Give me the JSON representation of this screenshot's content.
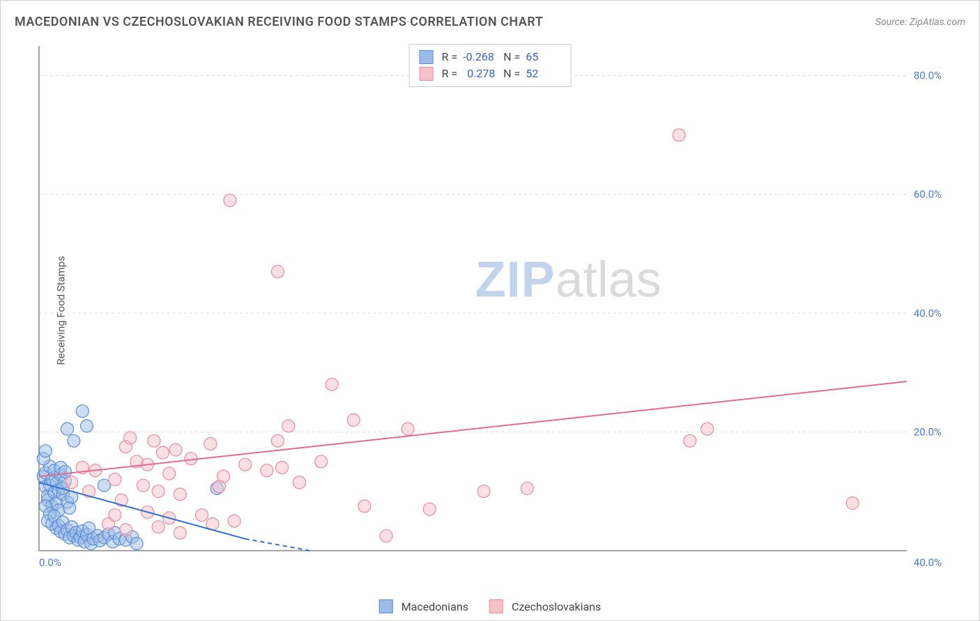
{
  "title": "MACEDONIAN VS CZECHOSLOVAKIAN RECEIVING FOOD STAMPS CORRELATION CHART",
  "source_label": "Source: ",
  "source_value": "ZipAtlas.com",
  "y_axis_label": "Receiving Food Stamps",
  "watermark_zip": "ZIP",
  "watermark_atlas": "atlas",
  "chart": {
    "type": "scatter",
    "xlim": [
      0,
      40
    ],
    "ylim": [
      0,
      85
    ],
    "x_ticks": [
      0,
      40
    ],
    "x_tick_labels": [
      "0.0%",
      "40.0%"
    ],
    "y_ticks": [
      20,
      40,
      60,
      80
    ],
    "y_tick_labels": [
      "20.0%",
      "40.0%",
      "60.0%",
      "80.0%"
    ],
    "background_color": "#ffffff",
    "grid_color": "#dddddd",
    "axis_color": "#888888",
    "tick_label_color": "#4a7bd0",
    "marker_radius": 9,
    "marker_opacity": 0.5,
    "line_width": 2,
    "series": [
      {
        "name": "Macedonians",
        "fill_color": "#9bbce8",
        "stroke_color": "#5a8fd6",
        "line_color": "#2e6fd1",
        "R": "-0.268",
        "N": "65",
        "trend": {
          "x1": 0,
          "y1": 11.5,
          "x2": 9.5,
          "y2": 2.0,
          "dash_x2": 12.5,
          "dash_y2": -1
        },
        "points": [
          [
            0.2,
            12.5
          ],
          [
            0.3,
            10.8
          ],
          [
            0.4,
            9.2
          ],
          [
            0.3,
            13.1
          ],
          [
            0.5,
            11.0
          ],
          [
            0.4,
            8.5
          ],
          [
            0.6,
            12.0
          ],
          [
            0.5,
            14.2
          ],
          [
            0.7,
            9.8
          ],
          [
            0.6,
            7.5
          ],
          [
            0.8,
            11.3
          ],
          [
            0.7,
            13.5
          ],
          [
            0.9,
            10.2
          ],
          [
            0.8,
            8.0
          ],
          [
            1.0,
            12.8
          ],
          [
            1.1,
            9.5
          ],
          [
            0.9,
            6.8
          ],
          [
            1.2,
            11.7
          ],
          [
            1.0,
            14.0
          ],
          [
            1.3,
            8.2
          ],
          [
            1.1,
            10.5
          ],
          [
            1.4,
            7.2
          ],
          [
            1.2,
            13.3
          ],
          [
            1.5,
            9.0
          ],
          [
            0.3,
            7.5
          ],
          [
            0.5,
            6.2
          ],
          [
            0.4,
            5.0
          ],
          [
            0.6,
            4.5
          ],
          [
            0.7,
            5.8
          ],
          [
            0.8,
            3.8
          ],
          [
            0.9,
            4.2
          ],
          [
            1.0,
            3.2
          ],
          [
            1.1,
            4.8
          ],
          [
            1.2,
            2.8
          ],
          [
            1.3,
            3.5
          ],
          [
            1.4,
            2.2
          ],
          [
            1.5,
            4.0
          ],
          [
            1.6,
            2.5
          ],
          [
            1.7,
            3.0
          ],
          [
            1.8,
            1.8
          ],
          [
            1.9,
            2.3
          ],
          [
            2.0,
            3.3
          ],
          [
            2.1,
            1.5
          ],
          [
            2.2,
            2.7
          ],
          [
            2.3,
            3.8
          ],
          [
            2.4,
            1.2
          ],
          [
            2.5,
            2.0
          ],
          [
            2.7,
            2.5
          ],
          [
            2.8,
            1.7
          ],
          [
            3.0,
            2.2
          ],
          [
            3.2,
            2.8
          ],
          [
            3.4,
            1.5
          ],
          [
            3.5,
            3.0
          ],
          [
            3.7,
            2.0
          ],
          [
            4.0,
            1.8
          ],
          [
            4.3,
            2.3
          ],
          [
            4.5,
            1.2
          ],
          [
            0.2,
            15.5
          ],
          [
            0.3,
            16.8
          ],
          [
            2.0,
            23.5
          ],
          [
            2.2,
            21.0
          ],
          [
            1.6,
            18.5
          ],
          [
            1.3,
            20.5
          ],
          [
            3.0,
            11.0
          ],
          [
            8.2,
            10.5
          ]
        ]
      },
      {
        "name": "Czechoslovakians",
        "fill_color": "#f5c2cc",
        "stroke_color": "#e88ba0",
        "line_color": "#e56b8a",
        "R": "0.278",
        "N": "52",
        "trend": {
          "x1": 0,
          "y1": 12.5,
          "x2": 40,
          "y2": 28.5
        },
        "points": [
          [
            1.5,
            11.5
          ],
          [
            2.0,
            14.0
          ],
          [
            2.3,
            10.0
          ],
          [
            2.6,
            13.5
          ],
          [
            3.5,
            12.0
          ],
          [
            3.8,
            8.5
          ],
          [
            4.5,
            15.0
          ],
          [
            4.8,
            11.0
          ],
          [
            4.0,
            17.5
          ],
          [
            5.0,
            14.5
          ],
          [
            5.3,
            18.5
          ],
          [
            5.5,
            10.0
          ],
          [
            5.7,
            16.5
          ],
          [
            6.0,
            13.0
          ],
          [
            6.3,
            17.0
          ],
          [
            6.5,
            9.5
          ],
          [
            7.0,
            15.5
          ],
          [
            7.9,
            18.0
          ],
          [
            8.5,
            12.5
          ],
          [
            11.0,
            18.5
          ],
          [
            11.2,
            14.0
          ],
          [
            11.5,
            21.0
          ],
          [
            13.0,
            15.0
          ],
          [
            13.5,
            28.0
          ],
          [
            14.5,
            22.0
          ],
          [
            15.0,
            7.5
          ],
          [
            16.0,
            2.5
          ],
          [
            17.0,
            20.5
          ],
          [
            18.0,
            7.0
          ],
          [
            20.5,
            10.0
          ],
          [
            22.5,
            10.5
          ],
          [
            30.0,
            18.5
          ],
          [
            30.8,
            20.5
          ],
          [
            37.5,
            8.0
          ],
          [
            29.5,
            70.0
          ],
          [
            8.8,
            59.0
          ],
          [
            11.0,
            47.0
          ],
          [
            3.2,
            4.5
          ],
          [
            3.5,
            6.0
          ],
          [
            4.0,
            3.5
          ],
          [
            4.2,
            19.0
          ],
          [
            5.0,
            6.5
          ],
          [
            5.5,
            4.0
          ],
          [
            6.0,
            5.5
          ],
          [
            6.5,
            3.0
          ],
          [
            7.5,
            6.0
          ],
          [
            8.0,
            4.5
          ],
          [
            9.0,
            5.0
          ],
          [
            10.5,
            13.5
          ],
          [
            12.0,
            11.5
          ],
          [
            8.3,
            10.8
          ],
          [
            9.5,
            14.5
          ]
        ]
      }
    ]
  },
  "stats_box": {
    "R_label": "R =",
    "N_label": "N ="
  }
}
